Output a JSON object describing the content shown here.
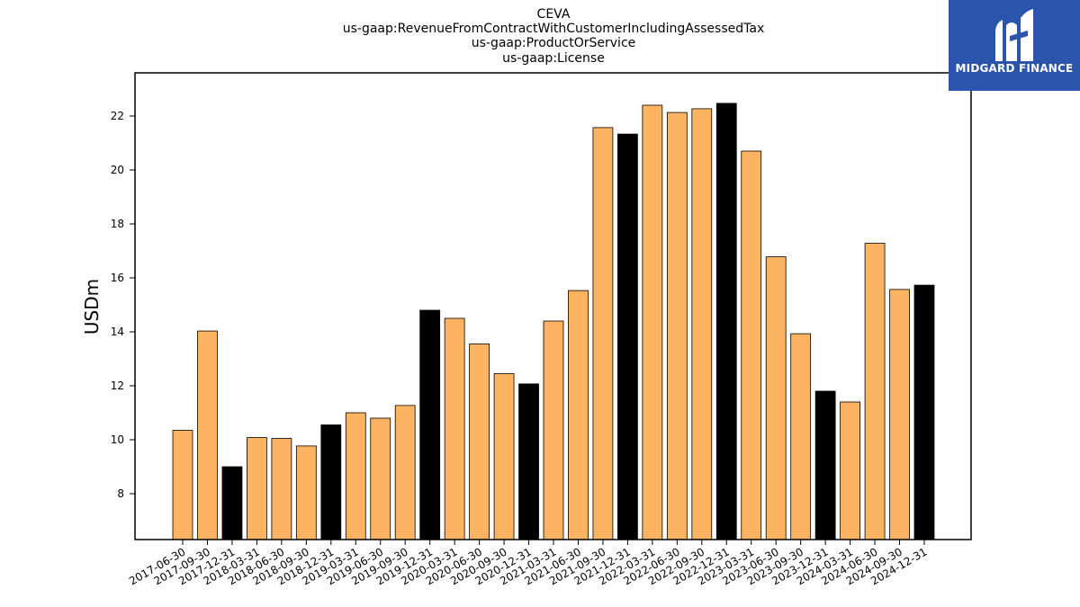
{
  "logo": {
    "text": "MIDGARD FINANCE",
    "background": "#2b55ac",
    "icon": "midgard-m-logo-icon"
  },
  "colors": {
    "normal_bar": "#fdb462",
    "highlight_bar": "#000000",
    "edge": "#000000"
  },
  "chart_data": {
    "type": "bar",
    "title_lines": [
      "CEVA",
      "us-gaap:RevenueFromContractWithCustomerIncludingAssessedTax",
      "us-gaap:ProductOrService",
      "us-gaap:License"
    ],
    "xlabel": "",
    "ylabel": "USDm",
    "ylim": [
      6.3,
      23.6
    ],
    "yticks": [
      8,
      10,
      12,
      14,
      16,
      18,
      20,
      22
    ],
    "grid": false,
    "legend": "none",
    "categories": [
      "2017-06-30",
      "2017-09-30",
      "2017-12-31",
      "2018-03-31",
      "2018-06-30",
      "2018-09-30",
      "2018-12-31",
      "2019-03-31",
      "2019-06-30",
      "2019-09-30",
      "2019-12-31",
      "2020-03-31",
      "2020-06-30",
      "2020-09-30",
      "2020-12-31",
      "2021-03-31",
      "2021-06-30",
      "2021-09-30",
      "2021-12-31",
      "2022-03-31",
      "2022-06-30",
      "2022-09-30",
      "2022-12-31",
      "2023-03-31",
      "2023-06-30",
      "2023-09-30",
      "2023-12-31",
      "2024-03-31",
      "2024-06-30",
      "2024-09-30",
      "2024-12-31"
    ],
    "values": [
      10.35,
      14.03,
      9.0,
      10.08,
      10.05,
      9.77,
      10.55,
      11.0,
      10.8,
      11.27,
      14.8,
      14.5,
      13.55,
      12.45,
      12.07,
      14.4,
      15.53,
      21.57,
      21.33,
      22.4,
      22.13,
      22.27,
      22.47,
      20.7,
      16.78,
      13.93,
      11.8,
      11.4,
      17.28,
      15.57,
      15.73
    ],
    "highlighted": [
      false,
      false,
      true,
      false,
      false,
      false,
      true,
      false,
      false,
      false,
      true,
      false,
      false,
      false,
      true,
      false,
      false,
      false,
      true,
      false,
      false,
      false,
      true,
      false,
      false,
      false,
      true,
      false,
      false,
      false,
      true
    ]
  }
}
